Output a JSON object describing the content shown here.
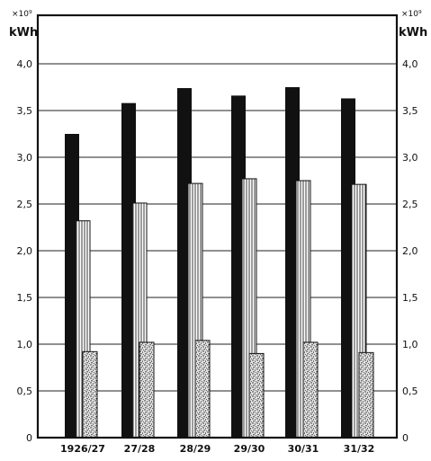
{
  "chart_data": {
    "type": "bar",
    "unit_exponent": "×10⁹",
    "unit_label": "kWh",
    "categories": [
      "1926/27",
      "27/28",
      "28/29",
      "29/30",
      "30/31",
      "31/32"
    ],
    "series": [
      {
        "fill": "solid-black",
        "color": "#111111",
        "values": [
          3.25,
          3.58,
          3.74,
          3.66,
          3.75,
          3.63
        ]
      },
      {
        "fill": "vertical-hatch",
        "color": "#333333",
        "values": [
          2.32,
          2.51,
          2.72,
          2.77,
          2.75,
          2.71
        ]
      },
      {
        "fill": "stipple",
        "color": "#333333",
        "values": [
          0.92,
          1.02,
          1.04,
          0.9,
          1.02,
          0.91
        ]
      }
    ],
    "y_ticks": [
      "0",
      "0,5",
      "1,0",
      "1,5",
      "2,0",
      "2,5",
      "3,0",
      "3,5",
      "4,0"
    ],
    "ylim": [
      0,
      4.0
    ],
    "grid": true,
    "y_axis_both_sides": true
  }
}
